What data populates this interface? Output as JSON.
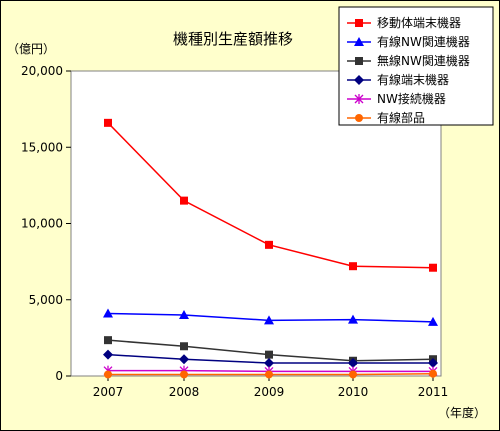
{
  "chart_data": {
    "type": "line",
    "title": "機種別生産額推移",
    "y_unit_label": "（億円）",
    "x_unit_label": "（年度）",
    "categories": [
      "2007",
      "2008",
      "2009",
      "2010",
      "2011"
    ],
    "ylim": [
      0,
      20000
    ],
    "y_ticks": [
      "0",
      "5,000",
      "10,000",
      "15,000",
      "20,000"
    ],
    "y_tick_values": [
      0,
      5000,
      10000,
      15000,
      20000
    ],
    "grid": false,
    "legend_position": "top-right",
    "series": [
      {
        "name": "移動体端末機器",
        "values": [
          16600,
          11500,
          8600,
          7200,
          7100
        ],
        "color": "#ff0000",
        "marker": "square"
      },
      {
        "name": "有線NW関連機器",
        "values": [
          4100,
          4000,
          3650,
          3700,
          3550
        ],
        "color": "#0000ff",
        "marker": "triangle"
      },
      {
        "name": "無線NW関連機器",
        "values": [
          2350,
          1950,
          1400,
          1000,
          1100
        ],
        "color": "#333333",
        "marker": "square"
      },
      {
        "name": "有線端末機器",
        "values": [
          1400,
          1100,
          850,
          850,
          850
        ],
        "color": "#000080",
        "marker": "diamond"
      },
      {
        "name": "NW接続機器",
        "values": [
          350,
          350,
          300,
          300,
          300
        ],
        "color": "#cc00cc",
        "marker": "star"
      },
      {
        "name": "有線部品",
        "values": [
          100,
          100,
          100,
          100,
          150
        ],
        "color": "#ff6600",
        "marker": "circle"
      }
    ]
  }
}
